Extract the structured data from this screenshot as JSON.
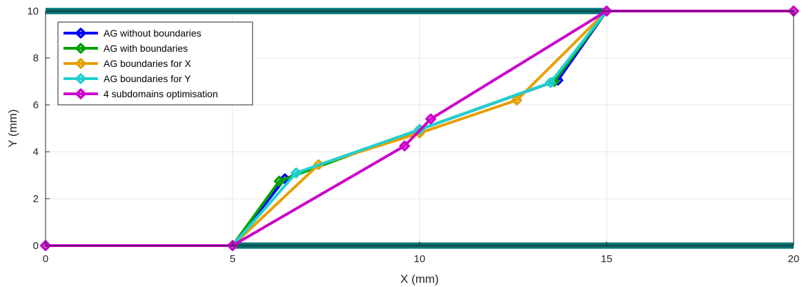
{
  "chart_data": {
    "type": "line",
    "xlabel": "X (mm)",
    "ylabel": "Y (mm)",
    "xlim": [
      0,
      20
    ],
    "ylim": [
      0,
      10
    ],
    "xticks": [
      "0",
      "5",
      "10",
      "15",
      "20"
    ],
    "yticks": [
      "0",
      "2",
      "4",
      "6",
      "8",
      "10"
    ],
    "grid": true,
    "legend_position": "top-left",
    "boundaries": {
      "color": "#007070",
      "top": {
        "x": [
          0,
          15
        ],
        "y": 10
      },
      "bottom": {
        "x": [
          5,
          20
        ],
        "y": 0
      }
    },
    "series": [
      {
        "name": "AG without boundaries",
        "color": "#0000ff",
        "points": [
          [
            0,
            0
          ],
          [
            5,
            0
          ],
          [
            6.4,
            2.85
          ],
          [
            10,
            4.95
          ],
          [
            13.7,
            7.05
          ],
          [
            15,
            10
          ],
          [
            20,
            10
          ]
        ]
      },
      {
        "name": "AG with boundaries",
        "color": "#00a000",
        "points": [
          [
            0,
            0
          ],
          [
            5,
            0
          ],
          [
            6.25,
            2.75
          ],
          [
            10,
            4.95
          ],
          [
            13.6,
            7.0
          ],
          [
            15,
            10
          ],
          [
            20,
            10
          ]
        ]
      },
      {
        "name": "AG boundaries for X",
        "color": "#e69f00",
        "points": [
          [
            0,
            0
          ],
          [
            5,
            0
          ],
          [
            7.3,
            3.45
          ],
          [
            10,
            4.8
          ],
          [
            12.6,
            6.2
          ],
          [
            15,
            10
          ],
          [
            20,
            10
          ]
        ]
      },
      {
        "name": "AG boundaries for Y",
        "color": "#20d0d0",
        "points": [
          [
            0,
            0
          ],
          [
            5,
            0
          ],
          [
            6.7,
            3.1
          ],
          [
            10,
            4.95
          ],
          [
            13.5,
            6.95
          ],
          [
            15,
            10
          ],
          [
            20,
            10
          ]
        ]
      },
      {
        "name": "4 subdomains optimisation",
        "color": "#cc00cc",
        "points": [
          [
            0,
            0
          ],
          [
            5,
            0
          ],
          [
            9.6,
            4.25
          ],
          [
            10.3,
            5.4
          ],
          [
            15,
            10
          ],
          [
            20,
            10
          ]
        ]
      }
    ]
  }
}
